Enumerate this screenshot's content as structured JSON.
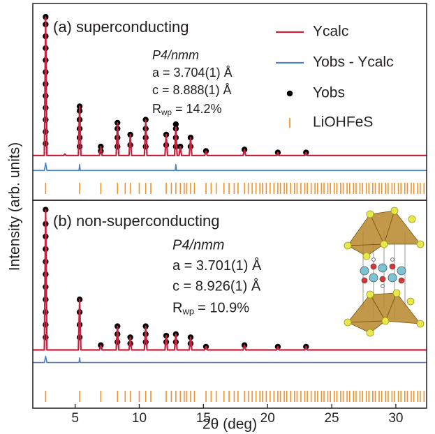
{
  "chart_data": [
    {
      "type": "line",
      "ylabel": "Intensity (arb. units)",
      "annotations": [
        "(a) superconducting",
        "P4/nmm",
        "a = 3.704(1) Å",
        "c = 8.888(1) Å"
      ],
      "rwp": {
        "symbol": "R",
        "subscript": "wp",
        "text": "= 14.2%"
      },
      "xlim": [
        1.7,
        32.4
      ],
      "ylim": [
        -30,
        102
      ],
      "legend": "upper right",
      "series": [
        {
          "name": "Ycalc",
          "mark": "line",
          "color": "#c8203f",
          "x": [
            1.7,
            2.6,
            2.7,
            2.8,
            4.1,
            4.2,
            4.3,
            5.25,
            5.35,
            5.45,
            6.9,
            7.0,
            7.1,
            8.2,
            8.3,
            8.4,
            9.2,
            9.3,
            9.4,
            10.4,
            10.5,
            10.6,
            12.0,
            12.1,
            12.2,
            12.75,
            12.85,
            12.95,
            13.1,
            13.2,
            13.3,
            13.9,
            14.0,
            14.1,
            15.1,
            15.2,
            15.3,
            18.1,
            18.2,
            18.3,
            20.7,
            20.8,
            20.9,
            22.9,
            23.0,
            23.1,
            32.4
          ],
          "values": [
            0,
            0,
            93,
            0,
            0,
            1,
            0,
            0,
            33,
            0,
            0,
            6,
            0,
            0,
            22,
            0,
            0,
            14,
            0,
            0,
            24,
            0,
            0,
            14,
            0,
            0,
            19,
            0,
            0,
            6,
            0,
            0,
            12,
            0,
            0,
            3,
            0,
            0,
            4,
            0,
            0,
            2,
            0,
            0,
            2,
            0,
            0
          ]
        },
        {
          "name": "Yobs - Ycalc",
          "mark": "line",
          "color": "#4a7fc1",
          "x": [
            1.7,
            2.6,
            2.7,
            2.8,
            5.3,
            5.35,
            5.4,
            12.8,
            12.85,
            12.9,
            32.4
          ],
          "values": [
            -10,
            -10,
            -5,
            -10,
            -10,
            -6,
            -10,
            -10,
            -6,
            -10,
            -10
          ]
        },
        {
          "name": "Yobs",
          "mark": "dot",
          "color": "#000000",
          "x": [
            2.7,
            2.7,
            2.7,
            2.7,
            2.7,
            2.7,
            2.7,
            2.7,
            2.7,
            2.7,
            2.7,
            2.7,
            5.35,
            5.35,
            5.35,
            5.35,
            5.35,
            5.35,
            7.0,
            7.0,
            8.3,
            8.3,
            8.3,
            8.3,
            9.3,
            9.3,
            10.5,
            10.5,
            10.5,
            10.5,
            12.1,
            12.1,
            12.85,
            12.85,
            12.85,
            12.85,
            13.2,
            14.0,
            14.0,
            15.2,
            18.2,
            20.8,
            23.0
          ],
          "values": [
            8,
            16,
            24,
            32,
            40,
            48,
            56,
            64,
            72,
            80,
            88,
            93,
            6,
            12,
            18,
            24,
            30,
            33,
            3,
            6,
            6,
            12,
            18,
            22,
            7,
            14,
            6,
            12,
            18,
            24,
            7,
            14,
            6,
            12,
            18,
            21,
            6,
            6,
            12,
            3,
            4,
            2,
            2
          ]
        },
        {
          "name": "LiOHFeS",
          "mark": "tick",
          "color": "#f0922b",
          "x": [
            2.7,
            5.35,
            7.0,
            8.3,
            8.9,
            9.3,
            10.0,
            10.5,
            10.9,
            12.1,
            12.5,
            12.85,
            13.2,
            13.5,
            13.7,
            14.0,
            14.3,
            15.2,
            15.6,
            16.0,
            16.6,
            17.0,
            17.4,
            17.7,
            18.2,
            18.5,
            18.8,
            19.1,
            19.4,
            19.6,
            19.9,
            20.2,
            20.5,
            20.8,
            21.0,
            21.3,
            21.5,
            21.8,
            22.1,
            22.3,
            22.6,
            22.9,
            23.1,
            23.4,
            23.7,
            23.9,
            24.2,
            24.4,
            24.7,
            24.9,
            25.2,
            25.4,
            25.7,
            25.9,
            26.2,
            26.4,
            26.7,
            26.9,
            27.2,
            27.4,
            27.7,
            27.9,
            28.2,
            28.4,
            28.7,
            28.9,
            29.2,
            29.4,
            29.7,
            29.9,
            30.2,
            30.4,
            30.7,
            30.9,
            31.2,
            31.4,
            31.7,
            31.9,
            32.2
          ]
        }
      ]
    },
    {
      "type": "line",
      "annotations": [
        "(b) non-superconducting",
        "P4/nmm",
        "a = 3.701(1) Å",
        "c = 8.926(1) Å"
      ],
      "rwp": {
        "symbol": "R",
        "subscript": "wp",
        "text": "= 10.9%"
      },
      "xlim": [
        1.7,
        32.4
      ],
      "ylim": [
        -37,
        95
      ],
      "xticks": [
        5,
        10,
        15,
        20,
        25,
        30
      ],
      "xlabel": "2θ (deg)",
      "series": [
        {
          "mark": "line",
          "color": "#c8203f",
          "x": [
            1.7,
            2.6,
            2.7,
            2.8,
            5.25,
            5.35,
            5.45,
            6.9,
            7.0,
            7.1,
            8.2,
            8.3,
            8.4,
            9.2,
            9.3,
            9.4,
            10.4,
            10.5,
            10.6,
            12.0,
            12.1,
            12.2,
            12.75,
            12.85,
            12.95,
            13.9,
            14.0,
            14.1,
            15.1,
            15.2,
            15.3,
            18.1,
            18.2,
            18.3,
            20.7,
            20.8,
            20.9,
            22.9,
            23.0,
            23.1,
            32.4
          ],
          "values": [
            0,
            0,
            89,
            0,
            0,
            32,
            0,
            0,
            3,
            0,
            0,
            15,
            0,
            0,
            8,
            0,
            0,
            15,
            0,
            0,
            9,
            0,
            0,
            10,
            0,
            0,
            8,
            0,
            0,
            2,
            0,
            0,
            3,
            0,
            0,
            2,
            0,
            0,
            2,
            0,
            0
          ]
        },
        {
          "mark": "line",
          "color": "#4a7fc1",
          "x": [
            1.7,
            2.6,
            2.7,
            2.8,
            5.3,
            5.35,
            5.4,
            32.4
          ],
          "values": [
            -8,
            -8,
            -4,
            -8,
            -8,
            -5,
            -8,
            -8
          ]
        },
        {
          "mark": "dot",
          "color": "#000000",
          "x": [
            2.7,
            2.7,
            2.7,
            2.7,
            2.7,
            2.7,
            2.7,
            2.7,
            2.7,
            2.7,
            2.7,
            5.35,
            5.35,
            5.35,
            5.35,
            7.0,
            8.3,
            8.3,
            8.3,
            9.3,
            9.3,
            10.5,
            10.5,
            10.5,
            12.1,
            12.1,
            12.85,
            12.85,
            14.0,
            14.0,
            15.2,
            18.2,
            20.8,
            23.0
          ],
          "values": [
            8,
            16,
            24,
            32,
            40,
            48,
            56,
            64,
            72,
            80,
            89,
            8,
            16,
            24,
            32,
            3,
            5,
            10,
            15,
            4,
            8,
            5,
            10,
            15,
            5,
            9,
            5,
            10,
            4,
            8,
            2,
            3,
            2,
            2
          ]
        },
        {
          "mark": "tick",
          "color": "#f0922b",
          "x": [
            2.7,
            5.35,
            7.0,
            8.3,
            8.9,
            9.3,
            10.0,
            10.5,
            10.9,
            12.1,
            12.5,
            12.85,
            13.2,
            13.5,
            13.7,
            14.0,
            14.3,
            15.2,
            15.6,
            16.0,
            16.6,
            17.0,
            17.4,
            17.7,
            18.2,
            18.5,
            18.8,
            19.1,
            19.4,
            19.6,
            19.9,
            20.2,
            20.5,
            20.8,
            21.0,
            21.3,
            21.5,
            21.8,
            22.1,
            22.3,
            22.6,
            22.9,
            23.1,
            23.4,
            23.7,
            23.9,
            24.2,
            24.4,
            24.7,
            24.9,
            25.2,
            25.4,
            25.7,
            25.9,
            26.2,
            26.4,
            26.7,
            26.9,
            27.2,
            27.4,
            27.7,
            27.9,
            28.2,
            28.4,
            28.7,
            28.9,
            29.2,
            29.4,
            29.7,
            29.9,
            30.2,
            30.4,
            30.7,
            30.9,
            31.2,
            31.4,
            31.7,
            31.9,
            32.2
          ]
        }
      ]
    }
  ]
}
